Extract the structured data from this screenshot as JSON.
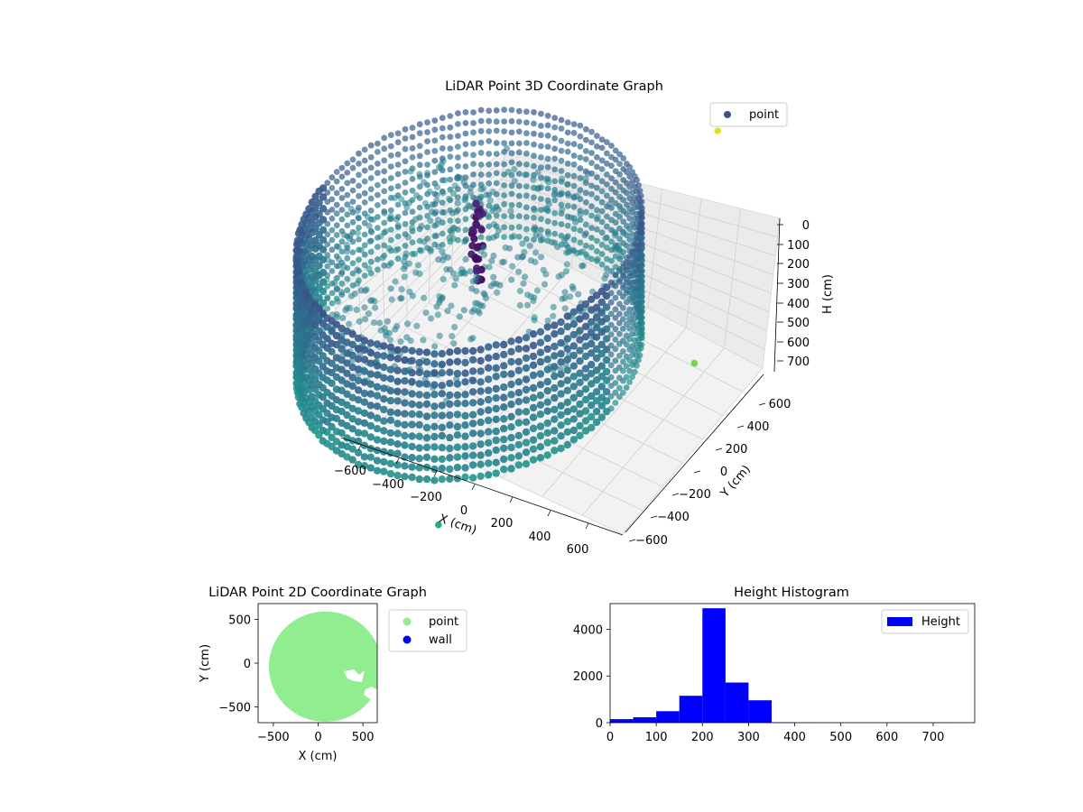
{
  "colors": {
    "point_2d": "#90ee90",
    "wall_2d": "#0000ff",
    "histogram": "#0000ff",
    "viridis_dark": "#440154",
    "viridis_mid": "#21918c",
    "viridis_light": "#fde725",
    "legend_marker_3d": "#3b528b"
  },
  "chart_data": [
    {
      "type": "scatter",
      "projection": "3d",
      "title": "LiDAR Point 3D Coordinate Graph",
      "xlabel": "X (cm)",
      "ylabel": "Y (cm)",
      "zlabel": "H (cm)",
      "xticks": [
        -600,
        -400,
        -200,
        0,
        200,
        400,
        600
      ],
      "yticks": [
        -600,
        -400,
        -200,
        0,
        200,
        400,
        600
      ],
      "zticks": [
        0,
        100,
        200,
        300,
        400,
        500,
        600,
        700
      ],
      "xlim": [
        -650,
        650
      ],
      "ylim": [
        -650,
        650
      ],
      "zlim": [
        750,
        0
      ],
      "z_inverted": true,
      "colormap": "viridis",
      "legend": {
        "position": "top-right",
        "entries": [
          "point"
        ]
      },
      "shape": "circular wall ring",
      "wall_radius": 600,
      "wall_height_range": [
        150,
        650
      ],
      "floor_height_range": [
        250,
        400
      ],
      "outliers": [
        {
          "x": 620,
          "y": 620,
          "h": 10
        },
        {
          "x": 300,
          "y": -620,
          "h": 740
        },
        {
          "x": 660,
          "y": 420,
          "h": 740
        }
      ]
    },
    {
      "type": "scatter",
      "title": "LiDAR Point 2D Coordinate Graph",
      "xlabel": "X (cm)",
      "ylabel": "Y (cm)",
      "xticks": [
        -500,
        0,
        500
      ],
      "yticks": [
        -500,
        0,
        500
      ],
      "xlim": [
        -670,
        660
      ],
      "ylim": [
        -680,
        680
      ],
      "legend": {
        "position": "outside-right",
        "entries": [
          "point",
          "wall"
        ]
      },
      "point_region": {
        "shape": "disc",
        "center": [
          80,
          -40
        ],
        "radius": 630
      }
    },
    {
      "type": "bar",
      "title": "Height Histogram",
      "xticks": [
        0,
        100,
        200,
        300,
        400,
        500,
        600,
        700
      ],
      "yticks": [
        0,
        2000,
        4000
      ],
      "xlim": [
        0,
        790
      ],
      "ylim": [
        0,
        5100
      ],
      "legend": {
        "position": "top-right",
        "entries": [
          "Height"
        ]
      },
      "bins": [
        {
          "x0": 0,
          "x1": 50,
          "count": 150
        },
        {
          "x0": 50,
          "x1": 100,
          "count": 230
        },
        {
          "x0": 100,
          "x1": 150,
          "count": 490
        },
        {
          "x0": 150,
          "x1": 200,
          "count": 1150
        },
        {
          "x0": 200,
          "x1": 250,
          "count": 4900
        },
        {
          "x0": 250,
          "x1": 300,
          "count": 1720
        },
        {
          "x0": 300,
          "x1": 350,
          "count": 960
        },
        {
          "x0": 350,
          "x1": 400,
          "count": 15
        },
        {
          "x0": 400,
          "x1": 450,
          "count": 8
        },
        {
          "x0": 450,
          "x1": 500,
          "count": 5
        },
        {
          "x0": 500,
          "x1": 550,
          "count": 5
        },
        {
          "x0": 550,
          "x1": 600,
          "count": 5
        },
        {
          "x0": 600,
          "x1": 650,
          "count": 5
        },
        {
          "x0": 650,
          "x1": 700,
          "count": 5
        },
        {
          "x0": 700,
          "x1": 750,
          "count": 8
        },
        {
          "x0": 750,
          "x1": 790,
          "count": 3
        }
      ]
    }
  ]
}
